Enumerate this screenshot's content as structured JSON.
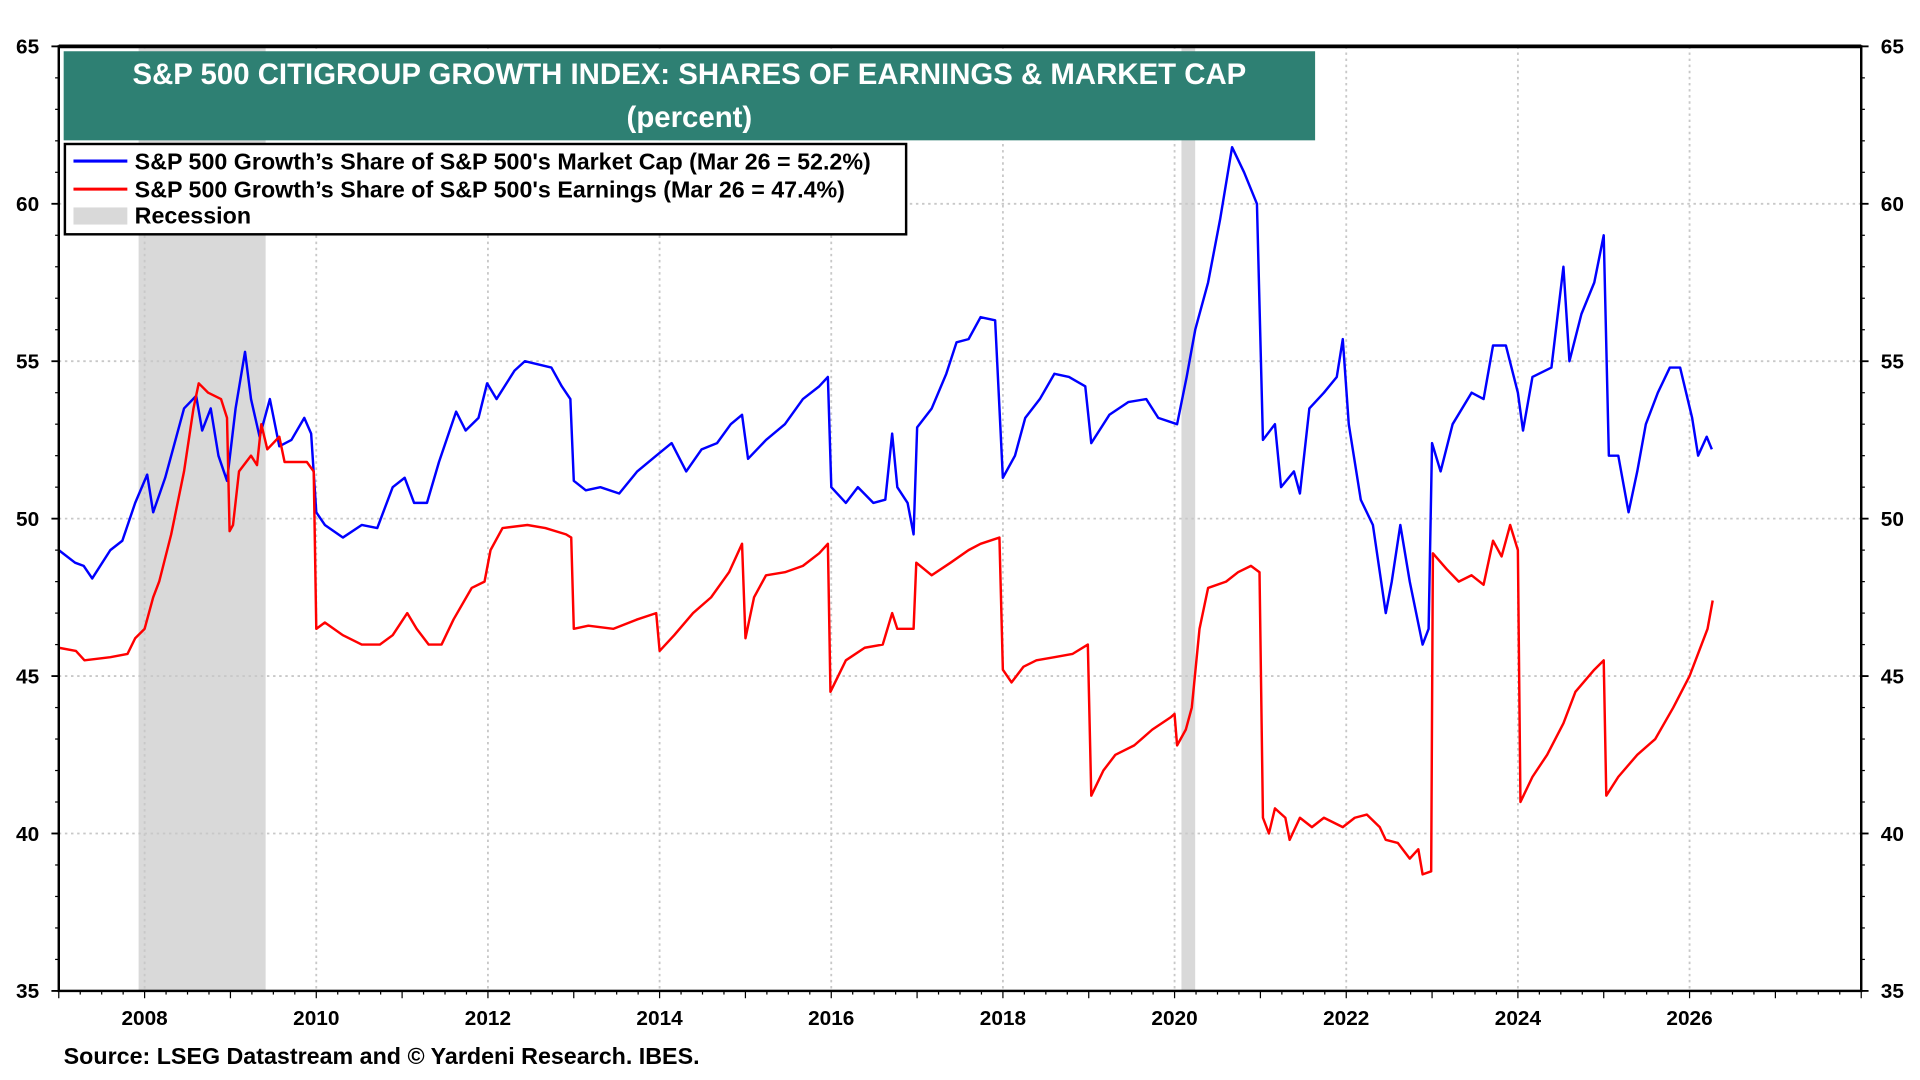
{
  "chart_data": {
    "type": "line",
    "title": "S&P 500 CITIGROUP GROWTH INDEX: SHARES OF EARNINGS & MARKET CAP",
    "subtitle": "(percent)",
    "xlim": [
      2007.0,
      2028.0
    ],
    "ylim": [
      35,
      65
    ],
    "y_ticks": [
      35,
      40,
      45,
      50,
      55,
      60,
      65
    ],
    "x_ticks": [
      2008,
      2010,
      2012,
      2014,
      2016,
      2018,
      2020,
      2022,
      2024,
      2026
    ],
    "grid": true,
    "dual_y_axis_mirrored": true,
    "legend_position": "top-left",
    "source": "Source: LSEG Datastream and © Yardeni Research. IBES.",
    "colors": {
      "title_bg": "#2e8073",
      "market_cap": "#0000ff",
      "earnings": "#ff0000",
      "recession": "#d9d9d9"
    },
    "recessions": [
      [
        2007.93,
        2009.41
      ],
      [
        2020.08,
        2020.24
      ]
    ],
    "recession_label": "Recession",
    "series": [
      {
        "name": "S&P 500 Growth’s Share of S&P 500's Market Cap (Mar 26 = 52.2%)",
        "color": "#0000ff",
        "points": [
          [
            2007.0,
            49.0
          ],
          [
            2007.19,
            48.6
          ],
          [
            2007.29,
            48.5
          ],
          [
            2007.39,
            48.1
          ],
          [
            2007.6,
            49.0
          ],
          [
            2007.74,
            49.3
          ],
          [
            2007.89,
            50.5
          ],
          [
            2008.03,
            51.4
          ],
          [
            2008.1,
            50.2
          ],
          [
            2008.24,
            51.3
          ],
          [
            2008.34,
            52.3
          ],
          [
            2008.46,
            53.5
          ],
          [
            2008.6,
            53.9
          ],
          [
            2008.67,
            52.8
          ],
          [
            2008.77,
            53.5
          ],
          [
            2008.86,
            52.0
          ],
          [
            2008.96,
            51.2
          ],
          [
            2009.06,
            53.5
          ],
          [
            2009.17,
            55.3
          ],
          [
            2009.24,
            53.8
          ],
          [
            2009.34,
            52.6
          ],
          [
            2009.46,
            53.8
          ],
          [
            2009.57,
            52.3
          ],
          [
            2009.71,
            52.5
          ],
          [
            2009.86,
            53.2
          ],
          [
            2009.94,
            52.7
          ],
          [
            2010.0,
            50.2
          ],
          [
            2010.1,
            49.8
          ],
          [
            2010.31,
            49.4
          ],
          [
            2010.53,
            49.8
          ],
          [
            2010.71,
            49.7
          ],
          [
            2010.89,
            51.0
          ],
          [
            2011.03,
            51.3
          ],
          [
            2011.14,
            50.5
          ],
          [
            2011.29,
            50.5
          ],
          [
            2011.43,
            51.8
          ],
          [
            2011.63,
            53.4
          ],
          [
            2011.74,
            52.8
          ],
          [
            2011.89,
            53.2
          ],
          [
            2011.99,
            54.3
          ],
          [
            2012.1,
            53.8
          ],
          [
            2012.31,
            54.7
          ],
          [
            2012.43,
            55.0
          ],
          [
            2012.74,
            54.8
          ],
          [
            2012.86,
            54.2
          ],
          [
            2012.96,
            53.8
          ],
          [
            2013.0,
            51.2
          ],
          [
            2013.14,
            50.9
          ],
          [
            2013.31,
            51.0
          ],
          [
            2013.53,
            50.8
          ],
          [
            2013.74,
            51.5
          ],
          [
            2013.96,
            52.0
          ],
          [
            2014.14,
            52.4
          ],
          [
            2014.31,
            51.5
          ],
          [
            2014.49,
            52.2
          ],
          [
            2014.67,
            52.4
          ],
          [
            2014.83,
            53.0
          ],
          [
            2014.96,
            53.3
          ],
          [
            2015.03,
            51.9
          ],
          [
            2015.24,
            52.5
          ],
          [
            2015.46,
            53.0
          ],
          [
            2015.67,
            53.8
          ],
          [
            2015.86,
            54.2
          ],
          [
            2015.96,
            54.5
          ],
          [
            2016.0,
            51.0
          ],
          [
            2016.17,
            50.5
          ],
          [
            2016.31,
            51.0
          ],
          [
            2016.49,
            50.5
          ],
          [
            2016.63,
            50.6
          ],
          [
            2016.71,
            52.7
          ],
          [
            2016.77,
            51.0
          ],
          [
            2016.89,
            50.5
          ],
          [
            2016.96,
            49.5
          ],
          [
            2017.0,
            52.9
          ],
          [
            2017.17,
            53.5
          ],
          [
            2017.34,
            54.6
          ],
          [
            2017.46,
            55.6
          ],
          [
            2017.6,
            55.7
          ],
          [
            2017.74,
            56.4
          ],
          [
            2017.91,
            56.3
          ],
          [
            2018.0,
            51.3
          ],
          [
            2018.14,
            52.0
          ],
          [
            2018.26,
            53.2
          ],
          [
            2018.43,
            53.8
          ],
          [
            2018.6,
            54.6
          ],
          [
            2018.77,
            54.5
          ],
          [
            2018.96,
            54.2
          ],
          [
            2019.03,
            52.4
          ],
          [
            2019.24,
            53.3
          ],
          [
            2019.46,
            53.7
          ],
          [
            2019.67,
            53.8
          ],
          [
            2019.81,
            53.2
          ],
          [
            2020.03,
            53.0
          ],
          [
            2020.14,
            54.5
          ],
          [
            2020.24,
            56.0
          ],
          [
            2020.39,
            57.5
          ],
          [
            2020.53,
            59.5
          ],
          [
            2020.67,
            61.8
          ],
          [
            2020.81,
            61.0
          ],
          [
            2020.96,
            60.0
          ],
          [
            2021.03,
            52.5
          ],
          [
            2021.17,
            53.0
          ],
          [
            2021.24,
            51.0
          ],
          [
            2021.39,
            51.5
          ],
          [
            2021.46,
            50.8
          ],
          [
            2021.57,
            53.5
          ],
          [
            2021.74,
            54.0
          ],
          [
            2021.89,
            54.5
          ],
          [
            2021.96,
            55.7
          ],
          [
            2022.03,
            53.0
          ],
          [
            2022.17,
            50.6
          ],
          [
            2022.31,
            49.8
          ],
          [
            2022.46,
            47.0
          ],
          [
            2022.53,
            48.0
          ],
          [
            2022.63,
            49.8
          ],
          [
            2022.74,
            48.0
          ],
          [
            2022.89,
            46.0
          ],
          [
            2022.96,
            46.5
          ],
          [
            2023.0,
            52.4
          ],
          [
            2023.1,
            51.5
          ],
          [
            2023.24,
            53.0
          ],
          [
            2023.46,
            54.0
          ],
          [
            2023.6,
            53.8
          ],
          [
            2023.71,
            55.5
          ],
          [
            2023.86,
            55.5
          ],
          [
            2024.0,
            54.0
          ],
          [
            2024.06,
            52.8
          ],
          [
            2024.17,
            54.5
          ],
          [
            2024.39,
            54.8
          ],
          [
            2024.53,
            58.0
          ],
          [
            2024.6,
            55.0
          ],
          [
            2024.74,
            56.5
          ],
          [
            2024.89,
            57.5
          ],
          [
            2025.0,
            59.0
          ],
          [
            2025.06,
            52.0
          ],
          [
            2025.17,
            52.0
          ],
          [
            2025.29,
            50.2
          ],
          [
            2025.39,
            51.5
          ],
          [
            2025.49,
            53.0
          ],
          [
            2025.63,
            54.0
          ],
          [
            2025.77,
            54.8
          ],
          [
            2025.89,
            54.8
          ],
          [
            2026.03,
            53.2
          ],
          [
            2026.1,
            52.0
          ],
          [
            2026.2,
            52.6
          ],
          [
            2026.26,
            52.2
          ]
        ]
      },
      {
        "name": "S&P 500 Growth’s Share of S&P 500's Earnings (Mar 26 = 47.4%)",
        "color": "#ff0000",
        "points": [
          [
            2007.0,
            45.9
          ],
          [
            2007.2,
            45.8
          ],
          [
            2007.3,
            45.5
          ],
          [
            2007.6,
            45.6
          ],
          [
            2007.8,
            45.7
          ],
          [
            2007.89,
            46.2
          ],
          [
            2008.0,
            46.5
          ],
          [
            2008.1,
            47.5
          ],
          [
            2008.17,
            48.0
          ],
          [
            2008.31,
            49.5
          ],
          [
            2008.46,
            51.5
          ],
          [
            2008.57,
            53.5
          ],
          [
            2008.63,
            54.3
          ],
          [
            2008.74,
            54.0
          ],
          [
            2008.89,
            53.8
          ],
          [
            2008.96,
            53.2
          ],
          [
            2008.99,
            49.6
          ],
          [
            2009.03,
            49.8
          ],
          [
            2009.1,
            51.5
          ],
          [
            2009.24,
            52.0
          ],
          [
            2009.31,
            51.7
          ],
          [
            2009.36,
            53.0
          ],
          [
            2009.43,
            52.2
          ],
          [
            2009.57,
            52.6
          ],
          [
            2009.63,
            51.8
          ],
          [
            2009.89,
            51.8
          ],
          [
            2009.97,
            51.5
          ],
          [
            2010.0,
            46.5
          ],
          [
            2010.1,
            46.7
          ],
          [
            2010.31,
            46.3
          ],
          [
            2010.53,
            46.0
          ],
          [
            2010.74,
            46.0
          ],
          [
            2010.89,
            46.3
          ],
          [
            2011.06,
            47.0
          ],
          [
            2011.17,
            46.5
          ],
          [
            2011.31,
            46.0
          ],
          [
            2011.46,
            46.0
          ],
          [
            2011.6,
            46.8
          ],
          [
            2011.81,
            47.8
          ],
          [
            2011.96,
            48.0
          ],
          [
            2012.03,
            49.0
          ],
          [
            2012.17,
            49.7
          ],
          [
            2012.46,
            49.8
          ],
          [
            2012.67,
            49.7
          ],
          [
            2012.91,
            49.5
          ],
          [
            2012.97,
            49.4
          ],
          [
            2013.0,
            46.5
          ],
          [
            2013.17,
            46.6
          ],
          [
            2013.46,
            46.5
          ],
          [
            2013.74,
            46.8
          ],
          [
            2013.96,
            47.0
          ],
          [
            2014.0,
            45.8
          ],
          [
            2014.17,
            46.3
          ],
          [
            2014.39,
            47.0
          ],
          [
            2014.6,
            47.5
          ],
          [
            2014.81,
            48.3
          ],
          [
            2014.96,
            49.2
          ],
          [
            2015.0,
            46.2
          ],
          [
            2015.1,
            47.5
          ],
          [
            2015.24,
            48.2
          ],
          [
            2015.46,
            48.3
          ],
          [
            2015.67,
            48.5
          ],
          [
            2015.86,
            48.9
          ],
          [
            2015.96,
            49.2
          ],
          [
            2015.99,
            44.5
          ],
          [
            2016.17,
            45.5
          ],
          [
            2016.39,
            45.9
          ],
          [
            2016.6,
            46.0
          ],
          [
            2016.71,
            47.0
          ],
          [
            2016.77,
            46.5
          ],
          [
            2016.96,
            46.5
          ],
          [
            2016.99,
            48.6
          ],
          [
            2017.17,
            48.2
          ],
          [
            2017.39,
            48.6
          ],
          [
            2017.6,
            49.0
          ],
          [
            2017.74,
            49.2
          ],
          [
            2017.96,
            49.4
          ],
          [
            2018.0,
            45.2
          ],
          [
            2018.1,
            44.8
          ],
          [
            2018.24,
            45.3
          ],
          [
            2018.39,
            45.5
          ],
          [
            2018.6,
            45.6
          ],
          [
            2018.81,
            45.7
          ],
          [
            2018.99,
            46.0
          ],
          [
            2019.03,
            41.2
          ],
          [
            2019.17,
            42.0
          ],
          [
            2019.31,
            42.5
          ],
          [
            2019.53,
            42.8
          ],
          [
            2019.74,
            43.3
          ],
          [
            2019.96,
            43.7
          ],
          [
            2020.0,
            43.8
          ],
          [
            2020.03,
            42.8
          ],
          [
            2020.13,
            43.3
          ],
          [
            2020.2,
            44.0
          ],
          [
            2020.29,
            46.5
          ],
          [
            2020.39,
            47.8
          ],
          [
            2020.6,
            48.0
          ],
          [
            2020.74,
            48.3
          ],
          [
            2020.89,
            48.5
          ],
          [
            2020.99,
            48.3
          ],
          [
            2021.03,
            40.5
          ],
          [
            2021.1,
            40.0
          ],
          [
            2021.17,
            40.8
          ],
          [
            2021.29,
            40.5
          ],
          [
            2021.34,
            39.8
          ],
          [
            2021.46,
            40.5
          ],
          [
            2021.6,
            40.2
          ],
          [
            2021.74,
            40.5
          ],
          [
            2021.96,
            40.2
          ],
          [
            2022.1,
            40.5
          ],
          [
            2022.24,
            40.6
          ],
          [
            2022.39,
            40.2
          ],
          [
            2022.46,
            39.8
          ],
          [
            2022.6,
            39.7
          ],
          [
            2022.74,
            39.2
          ],
          [
            2022.84,
            39.5
          ],
          [
            2022.89,
            38.7
          ],
          [
            2022.99,
            38.8
          ],
          [
            2023.01,
            48.9
          ],
          [
            2023.17,
            48.4
          ],
          [
            2023.31,
            48.0
          ],
          [
            2023.46,
            48.2
          ],
          [
            2023.6,
            47.9
          ],
          [
            2023.71,
            49.3
          ],
          [
            2023.81,
            48.8
          ],
          [
            2023.91,
            49.8
          ],
          [
            2024.0,
            49.0
          ],
          [
            2024.03,
            41.0
          ],
          [
            2024.17,
            41.8
          ],
          [
            2024.34,
            42.5
          ],
          [
            2024.53,
            43.5
          ],
          [
            2024.67,
            44.5
          ],
          [
            2024.89,
            45.2
          ],
          [
            2025.0,
            45.5
          ],
          [
            2025.03,
            41.2
          ],
          [
            2025.17,
            41.8
          ],
          [
            2025.39,
            42.5
          ],
          [
            2025.6,
            43.0
          ],
          [
            2025.81,
            44.0
          ],
          [
            2026.0,
            45.0
          ],
          [
            2026.14,
            46.0
          ],
          [
            2026.21,
            46.5
          ],
          [
            2026.27,
            47.4
          ]
        ]
      }
    ]
  }
}
